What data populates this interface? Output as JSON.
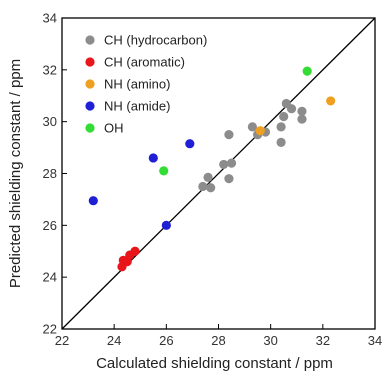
{
  "chart_data": {
    "type": "scatter",
    "xlabel": "Calculated shielding constant / ppm",
    "ylabel": "Predicted shielding constant / ppm",
    "xlim": [
      22,
      34
    ],
    "ylim": [
      22,
      34
    ],
    "xticks": [
      22,
      24,
      26,
      28,
      30,
      32,
      34
    ],
    "yticks": [
      22,
      24,
      26,
      28,
      30,
      32,
      34
    ],
    "grid": false,
    "legend_position": "top-left",
    "reference_line": {
      "from": [
        22,
        22
      ],
      "to": [
        34,
        34
      ]
    },
    "series": [
      {
        "name": "CH (hydrocarbon)",
        "color": "#8c8c8c",
        "points": [
          [
            27.4,
            27.5
          ],
          [
            27.6,
            27.85
          ],
          [
            27.7,
            27.45
          ],
          [
            28.2,
            28.35
          ],
          [
            28.4,
            27.8
          ],
          [
            28.4,
            29.5
          ],
          [
            28.5,
            28.4
          ],
          [
            29.3,
            29.8
          ],
          [
            29.5,
            29.5
          ],
          [
            29.8,
            29.6
          ],
          [
            30.4,
            29.2
          ],
          [
            30.4,
            29.8
          ],
          [
            30.5,
            30.2
          ],
          [
            30.6,
            30.7
          ],
          [
            30.8,
            30.5
          ],
          [
            31.2,
            30.1
          ],
          [
            31.2,
            30.4
          ]
        ]
      },
      {
        "name": "CH (aromatic)",
        "color": "#e8151b",
        "points": [
          [
            24.3,
            24.4
          ],
          [
            24.35,
            24.65
          ],
          [
            24.5,
            24.6
          ],
          [
            24.6,
            24.85
          ],
          [
            24.8,
            25.0
          ]
        ]
      },
      {
        "name": "NH (amino)",
        "color": "#f0a020",
        "points": [
          [
            29.6,
            29.65
          ],
          [
            32.3,
            30.8
          ]
        ]
      },
      {
        "name": "NH (amide)",
        "color": "#1f1fd6",
        "points": [
          [
            23.2,
            26.95
          ],
          [
            25.5,
            28.6
          ],
          [
            26.0,
            26.0
          ],
          [
            26.9,
            29.15
          ]
        ]
      },
      {
        "name": "OH",
        "color": "#33dd33",
        "points": [
          [
            25.9,
            28.1
          ],
          [
            31.4,
            31.95
          ]
        ]
      }
    ]
  }
}
